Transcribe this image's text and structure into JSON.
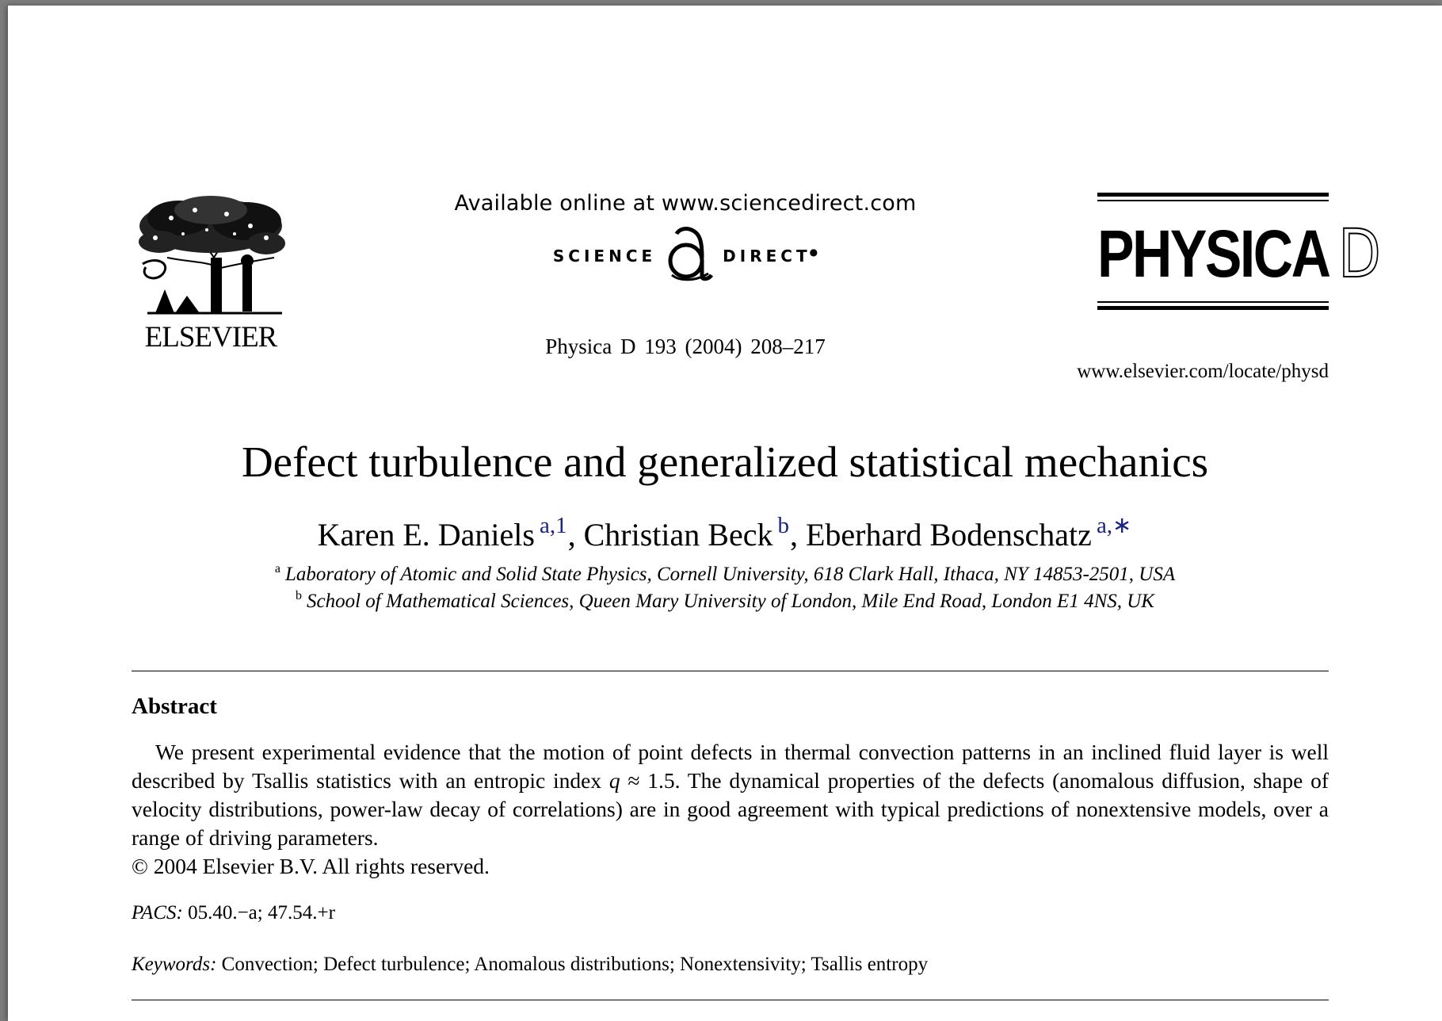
{
  "header": {
    "publisher_logo_text": "ELSEVIER",
    "available_online": "Available online at www.sciencedirect.com",
    "sciencedirect_left": "SCIENCE",
    "sciencedirect_at": "d",
    "sciencedirect_right": "DIRECT",
    "citation": "Physica D 193 (2004) 208–217",
    "journal_title": "PHYSICA",
    "journal_letter": "D",
    "journal_url": "www.elsevier.com/locate/physd"
  },
  "article": {
    "title": "Defect turbulence and generalized statistical mechanics",
    "authors": [
      {
        "name": "Karen E. Daniels",
        "marks": "a,1"
      },
      {
        "name": "Christian Beck",
        "marks": "b"
      },
      {
        "name": "Eberhard Bodenschatz",
        "marks": "a,∗"
      }
    ],
    "affiliations": [
      {
        "mark": "a",
        "text": "Laboratory of Atomic and Solid State Physics, Cornell University, 618 Clark Hall, Ithaca, NY 14853-2501, USA"
      },
      {
        "mark": "b",
        "text": "School of Mathematical Sciences, Queen Mary University of London, Mile End Road, London E1 4NS, UK"
      }
    ]
  },
  "abstract": {
    "heading": "Abstract",
    "text_part1": "We present experimental evidence that the motion of point defects in thermal convection patterns in an inclined fluid layer is well described by Tsallis statistics with an entropic index ",
    "symbol": "q",
    "text_part2": " ≈ 1.5. The dynamical properties of the defects (anomalous diffusion, shape of velocity distributions, power-law decay of correlations) are in good agreement with typical predictions of nonextensive models, over a range of driving parameters.",
    "copyright": "© 2004 Elsevier B.V. All rights reserved."
  },
  "pacs": {
    "label": "PACS:",
    "value": "05.40.−a; 47.54.+r"
  },
  "keywords": {
    "label": "Keywords:",
    "value": "Convection; Defect turbulence; Anomalous distributions; Nonextensivity; Tsallis entropy"
  }
}
